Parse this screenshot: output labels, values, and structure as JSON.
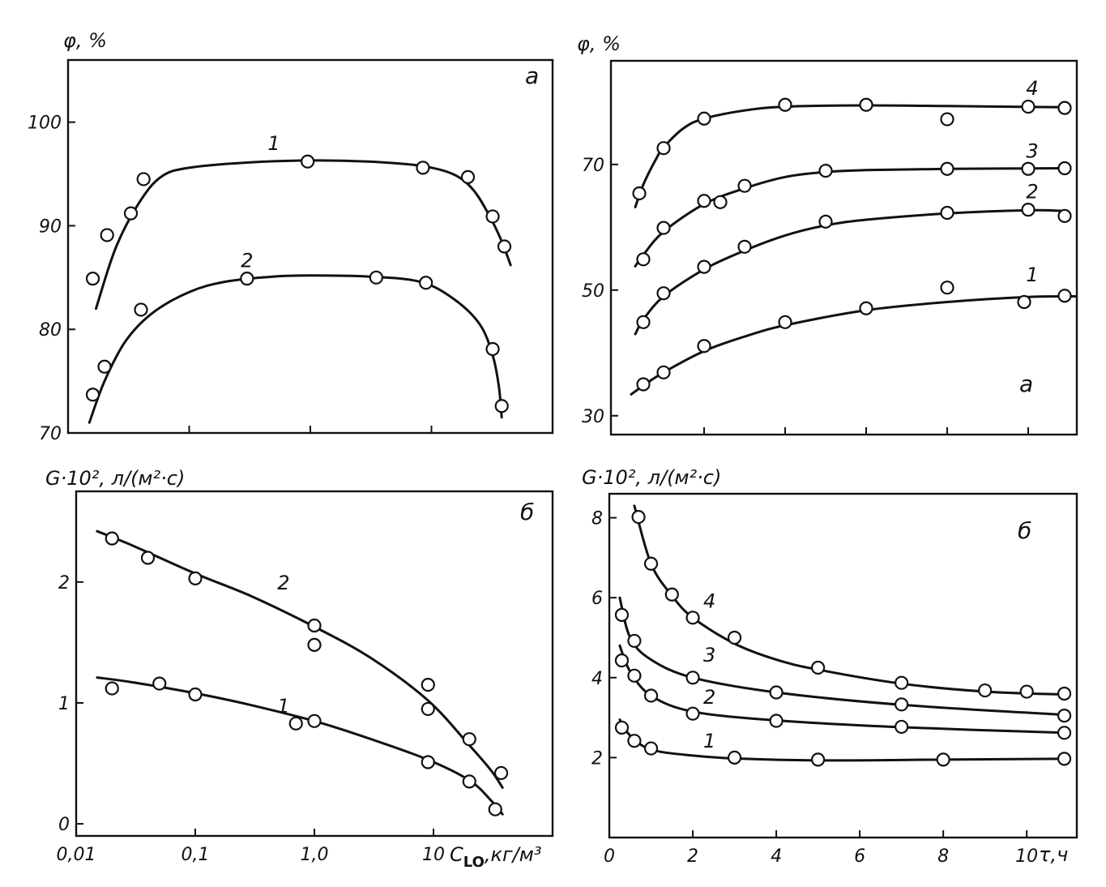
{
  "chart_data": [
    {
      "id": "top_left",
      "type": "scatter",
      "panel_letter": "а",
      "ylabel": "φ, %",
      "xlabel": "",
      "xscale": "log",
      "xlim": [
        0.01,
        100
      ],
      "ylim": [
        70,
        106
      ],
      "yticks": [
        70,
        80,
        90,
        100
      ],
      "ytick_labels": [
        "70",
        "80",
        "90",
        "100"
      ],
      "xticks": [
        0.1,
        1,
        10
      ],
      "xtick_labels": [],
      "series": [
        {
          "name": "1",
          "points": [
            [
              0.016,
              84.9
            ],
            [
              0.021,
              89.1
            ],
            [
              0.033,
              91.2
            ],
            [
              0.042,
              94.5
            ],
            [
              0.95,
              96.2
            ],
            [
              8.5,
              95.6
            ],
            [
              20,
              94.7
            ],
            [
              32,
              90.9
            ],
            [
              40,
              88.0
            ]
          ],
          "curve": [
            [
              0.017,
              82.0
            ],
            [
              0.025,
              88.0
            ],
            [
              0.04,
              92.5
            ],
            [
              0.06,
              94.8
            ],
            [
              0.1,
              95.6
            ],
            [
              0.3,
              96.1
            ],
            [
              1,
              96.3
            ],
            [
              3,
              96.2
            ],
            [
              8,
              95.8
            ],
            [
              15,
              95.0
            ],
            [
              22,
              93.5
            ],
            [
              30,
              91.0
            ],
            [
              38,
              88.5
            ],
            [
              45,
              86.2
            ]
          ]
        },
        {
          "name": "2",
          "points": [
            [
              0.016,
              73.7
            ],
            [
              0.02,
              76.4
            ],
            [
              0.04,
              81.9
            ],
            [
              0.3,
              84.9
            ],
            [
              3.5,
              85.0
            ],
            [
              9,
              84.5
            ],
            [
              32,
              78.1
            ],
            [
              38,
              72.6
            ]
          ],
          "curve": [
            [
              0.015,
              71.0
            ],
            [
              0.02,
              75.0
            ],
            [
              0.03,
              78.9
            ],
            [
              0.05,
              81.6
            ],
            [
              0.1,
              83.6
            ],
            [
              0.2,
              84.6
            ],
            [
              0.5,
              85.1
            ],
            [
              1,
              85.2
            ],
            [
              3,
              85.1
            ],
            [
              8,
              84.6
            ],
            [
              15,
              83.0
            ],
            [
              25,
              80.5
            ],
            [
              32,
              77.5
            ],
            [
              36,
              74.5
            ],
            [
              38,
              71.5
            ]
          ]
        }
      ]
    },
    {
      "id": "bottom_left",
      "type": "scatter",
      "panel_letter": "б",
      "ylabel": "G·10², л/(м²·с)",
      "xlabel": "C_LO, кг/м³",
      "xlabel_main": "C",
      "xlabel_sub": "LO",
      "xlabel_units": ",кг/м³",
      "xscale": "log",
      "xlim": [
        0.01,
        100
      ],
      "ylim": [
        -0.1,
        2.75
      ],
      "yticks": [
        0,
        1,
        2
      ],
      "ytick_labels": [
        "0",
        "1",
        "2"
      ],
      "xticks": [
        0.01,
        0.1,
        1,
        10
      ],
      "xtick_labels": [
        "0,01",
        "0,1",
        "1,0",
        "10"
      ],
      "series": [
        {
          "name": "1",
          "points": [
            [
              0.02,
              1.12
            ],
            [
              0.05,
              1.16
            ],
            [
              0.1,
              1.07
            ],
            [
              0.7,
              0.83
            ],
            [
              1.0,
              0.85
            ],
            [
              9,
              0.51
            ],
            [
              20,
              0.35
            ],
            [
              33,
              0.12
            ]
          ],
          "curve": [
            [
              0.015,
              1.21
            ],
            [
              0.03,
              1.17
            ],
            [
              0.1,
              1.08
            ],
            [
              0.3,
              0.98
            ],
            [
              1,
              0.85
            ],
            [
              3,
              0.7
            ],
            [
              9,
              0.53
            ],
            [
              20,
              0.36
            ],
            [
              30,
              0.2
            ],
            [
              38,
              0.08
            ]
          ]
        },
        {
          "name": "2",
          "points": [
            [
              0.02,
              2.36
            ],
            [
              0.04,
              2.2
            ],
            [
              0.1,
              2.03
            ],
            [
              1.0,
              1.64
            ],
            [
              1.0,
              1.48
            ],
            [
              9,
              1.15
            ],
            [
              9,
              0.95
            ],
            [
              20,
              0.7
            ],
            [
              37,
              0.42
            ]
          ],
          "curve": [
            [
              0.015,
              2.42
            ],
            [
              0.03,
              2.3
            ],
            [
              0.1,
              2.07
            ],
            [
              0.3,
              1.88
            ],
            [
              1,
              1.63
            ],
            [
              3,
              1.37
            ],
            [
              9,
              1.02
            ],
            [
              20,
              0.65
            ],
            [
              30,
              0.45
            ],
            [
              38,
              0.3
            ]
          ]
        }
      ]
    },
    {
      "id": "top_right",
      "type": "scatter",
      "panel_letter": "а",
      "ylabel": "φ, %",
      "xlabel": "",
      "xlim": [
        -0.3,
        11.2
      ],
      "ylim": [
        27,
        86.5
      ],
      "yticks": [
        30,
        50,
        70
      ],
      "ytick_labels": [
        "30",
        "50",
        "70"
      ],
      "xticks": [
        2,
        4,
        6,
        8,
        10
      ],
      "xtick_labels": [],
      "series": [
        {
          "name": "1",
          "points": [
            [
              0.5,
              35
            ],
            [
              1.0,
              36.9
            ],
            [
              2.0,
              41.1
            ],
            [
              4.0,
              44.9
            ],
            [
              6.0,
              47.1
            ],
            [
              8.0,
              50.4
            ],
            [
              9.9,
              48.1
            ],
            [
              10.9,
              49.1
            ]
          ],
          "curve": [
            [
              0.2,
              33.4
            ],
            [
              0.5,
              34.8
            ],
            [
              1,
              36.9
            ],
            [
              2,
              40.3
            ],
            [
              3,
              42.6
            ],
            [
              4,
              44.4
            ],
            [
              6,
              46.8
            ],
            [
              8,
              48.1
            ],
            [
              10,
              48.9
            ],
            [
              11.2,
              49.0
            ]
          ]
        },
        {
          "name": "2",
          "points": [
            [
              0.5,
              44.9
            ],
            [
              1.0,
              49.5
            ],
            [
              2.0,
              53.7
            ],
            [
              3.0,
              56.9
            ],
            [
              5.0,
              60.9
            ],
            [
              8.0,
              62.3
            ],
            [
              10.0,
              62.8
            ],
            [
              10.9,
              61.8
            ]
          ],
          "curve": [
            [
              0.3,
              43.0
            ],
            [
              0.5,
              45.3
            ],
            [
              1,
              49.0
            ],
            [
              2,
              53.3
            ],
            [
              3,
              56.3
            ],
            [
              4,
              58.7
            ],
            [
              5,
              60.3
            ],
            [
              6,
              61.2
            ],
            [
              8,
              62.2
            ],
            [
              10,
              62.7
            ],
            [
              10.9,
              62.6
            ]
          ]
        },
        {
          "name": "3",
          "points": [
            [
              0.5,
              54.9
            ],
            [
              1.0,
              59.9
            ],
            [
              2.0,
              64.2
            ],
            [
              2.4,
              64.0
            ],
            [
              3.0,
              66.6
            ],
            [
              5.0,
              69.0
            ],
            [
              8.0,
              69.3
            ],
            [
              10.0,
              69.3
            ],
            [
              10.9,
              69.4
            ]
          ],
          "curve": [
            [
              0.3,
              53.8
            ],
            [
              0.5,
              55.6
            ],
            [
              1,
              59.3
            ],
            [
              2,
              63.7
            ],
            [
              3,
              66.2
            ],
            [
              4,
              68.0
            ],
            [
              5,
              68.8
            ],
            [
              6,
              69.1
            ],
            [
              8,
              69.3
            ],
            [
              10.9,
              69.4
            ]
          ]
        },
        {
          "name": "4",
          "points": [
            [
              0.4,
              65.4
            ],
            [
              1.0,
              72.6
            ],
            [
              2.0,
              77.3
            ],
            [
              4.0,
              79.5
            ],
            [
              6.0,
              79.5
            ],
            [
              8.0,
              77.2
            ],
            [
              10.0,
              79.2
            ],
            [
              10.9,
              79.0
            ]
          ],
          "curve": [
            [
              0.3,
              63.2
            ],
            [
              0.5,
              66.8
            ],
            [
              0.8,
              70.7
            ],
            [
              1,
              72.7
            ],
            [
              1.5,
              75.8
            ],
            [
              2,
              77.3
            ],
            [
              3,
              78.6
            ],
            [
              4,
              79.2
            ],
            [
              6,
              79.4
            ],
            [
              8,
              79.3
            ],
            [
              10.9,
              79.1
            ]
          ]
        }
      ]
    },
    {
      "id": "bottom_right",
      "type": "scatter",
      "panel_letter": "б",
      "ylabel": "G·10², л/(м²·с)",
      "xlabel": "τ,ч",
      "xlim": [
        0,
        11.2
      ],
      "ylim": [
        0,
        8.6
      ],
      "yticks": [
        2,
        4,
        6,
        8
      ],
      "ytick_labels": [
        "2",
        "4",
        "6",
        "8"
      ],
      "xticks": [
        0,
        2,
        4,
        6,
        8,
        10
      ],
      "xtick_labels": [
        "0",
        "2",
        "4",
        "6",
        "8",
        "10"
      ],
      "series": [
        {
          "name": "1",
          "points": [
            [
              0.3,
              2.75
            ],
            [
              0.6,
              2.42
            ],
            [
              1.0,
              2.23
            ],
            [
              3.0,
              2.0
            ],
            [
              5.0,
              1.95
            ],
            [
              8.0,
              1.95
            ],
            [
              10.9,
              1.97
            ]
          ],
          "curve": [
            [
              0.25,
              2.95
            ],
            [
              0.5,
              2.55
            ],
            [
              1,
              2.2
            ],
            [
              2,
              2.05
            ],
            [
              3,
              1.98
            ],
            [
              5,
              1.93
            ],
            [
              8,
              1.95
            ],
            [
              10.9,
              1.97
            ]
          ]
        },
        {
          "name": "2",
          "points": [
            [
              0.3,
              4.43
            ],
            [
              0.6,
              4.05
            ],
            [
              1.0,
              3.55
            ],
            [
              2.0,
              3.1
            ],
            [
              4.0,
              2.92
            ],
            [
              7.0,
              2.77
            ],
            [
              10.9,
              2.62
            ]
          ],
          "curve": [
            [
              0.25,
              4.8
            ],
            [
              0.5,
              4.15
            ],
            [
              1,
              3.55
            ],
            [
              2,
              3.15
            ],
            [
              4,
              2.93
            ],
            [
              7,
              2.76
            ],
            [
              10.9,
              2.62
            ]
          ]
        },
        {
          "name": "3",
          "points": [
            [
              0.3,
              5.57
            ],
            [
              0.6,
              4.92
            ],
            [
              2.0,
              4.0
            ],
            [
              4.0,
              3.63
            ],
            [
              7.0,
              3.33
            ],
            [
              10.9,
              3.05
            ]
          ],
          "curve": [
            [
              0.25,
              6.0
            ],
            [
              0.5,
              5.0
            ],
            [
              1,
              4.45
            ],
            [
              2,
              4.0
            ],
            [
              4,
              3.63
            ],
            [
              7,
              3.32
            ],
            [
              10.9,
              3.07
            ]
          ]
        },
        {
          "name": "4",
          "points": [
            [
              0.7,
              8.02
            ],
            [
              1.0,
              6.85
            ],
            [
              1.5,
              6.08
            ],
            [
              2.0,
              5.5
            ],
            [
              3.0,
              5.0
            ],
            [
              5.0,
              4.25
            ],
            [
              7.0,
              3.87
            ],
            [
              9.0,
              3.68
            ],
            [
              10.0,
              3.65
            ],
            [
              10.9,
              3.6
            ]
          ],
          "curve": [
            [
              0.6,
              8.3
            ],
            [
              1,
              6.85
            ],
            [
              1.5,
              6.05
            ],
            [
              2,
              5.5
            ],
            [
              3,
              4.85
            ],
            [
              4,
              4.45
            ],
            [
              5,
              4.2
            ],
            [
              7,
              3.85
            ],
            [
              9,
              3.65
            ],
            [
              10.9,
              3.58
            ]
          ]
        }
      ]
    }
  ]
}
